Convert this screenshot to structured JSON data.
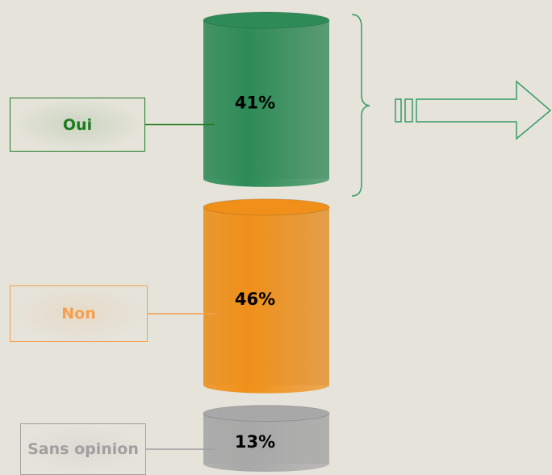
{
  "chart_data": {
    "type": "bar",
    "categories": [
      "Oui",
      "Non",
      "Sans opinion"
    ],
    "values": [
      41,
      46,
      13
    ],
    "value_labels": [
      "41%",
      "46%",
      "13%"
    ],
    "colors": [
      "#2e8b57",
      "#f0901a",
      "#a8a8a8"
    ],
    "label_colors": [
      "#1f7a1f",
      "#f5a050",
      "#a0a0a0"
    ],
    "ylim": [
      0,
      100
    ]
  }
}
